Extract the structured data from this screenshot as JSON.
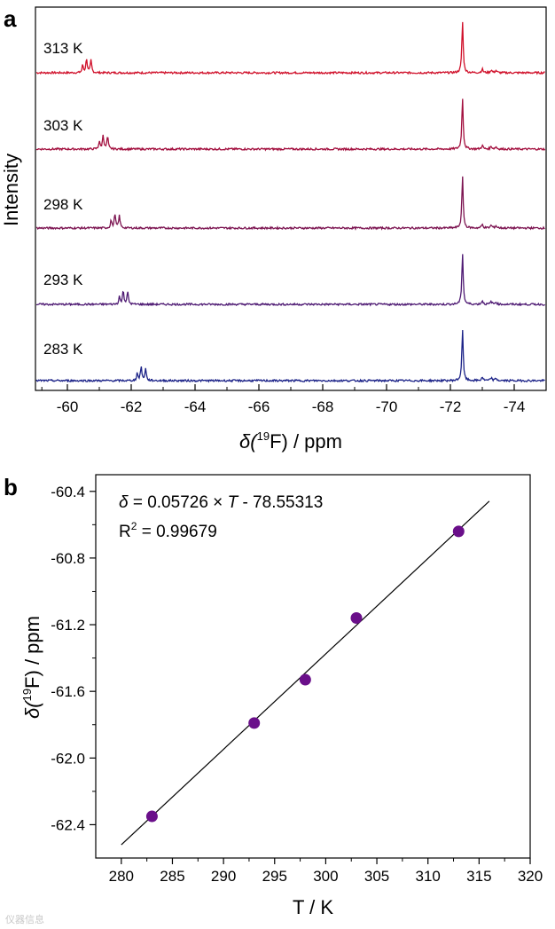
{
  "chart_data": [
    {
      "panel_label": "a",
      "type": "line",
      "xlabel_prefix": "δ(",
      "xlabel_sup": "19",
      "xlabel_suffix": "F) / ppm",
      "ylabel": "Intensity",
      "xlim": [
        -59,
        -75
      ],
      "x_ticks": [
        -60,
        -62,
        -64,
        -66,
        -68,
        -70,
        -72,
        -74
      ],
      "x_tick_labels": [
        "-60",
        "-62",
        "-64",
        "-66",
        "-68",
        "-70",
        "-72",
        "-74"
      ],
      "series": [
        {
          "name": "313 K",
          "color": "#d0102a",
          "small_peak_ppm": -60.64,
          "main_peak_ppm": -72.38
        },
        {
          "name": "303 K",
          "color": "#a3103f",
          "small_peak_ppm": -61.16,
          "main_peak_ppm": -72.38
        },
        {
          "name": "298 K",
          "color": "#7c1451",
          "small_peak_ppm": -61.53,
          "main_peak_ppm": -72.38
        },
        {
          "name": "293 K",
          "color": "#4e1a73",
          "small_peak_ppm": -61.79,
          "main_peak_ppm": -72.38
        },
        {
          "name": "283 K",
          "color": "#1c2388",
          "small_peak_ppm": -62.35,
          "main_peak_ppm": -72.38
        }
      ]
    },
    {
      "panel_label": "b",
      "type": "scatter",
      "xlabel": "T / K",
      "ylabel_prefix": "δ(",
      "ylabel_sup": "19",
      "ylabel_suffix": "F) / ppm",
      "xlim": [
        277.5,
        320
      ],
      "ylim": [
        -62.6,
        -60.3
      ],
      "x_ticks": [
        280,
        285,
        290,
        295,
        300,
        305,
        310,
        315,
        320
      ],
      "x_tick_labels": [
        "280",
        "285",
        "290",
        "295",
        "300",
        "305",
        "310",
        "315",
        "320"
      ],
      "y_ticks": [
        -60.4,
        -60.8,
        -61.2,
        -61.6,
        -62.0,
        -62.4
      ],
      "y_tick_labels": [
        "-60.4",
        "-60.8",
        "-61.2",
        "-61.6",
        "-62.0",
        "-62.4"
      ],
      "points": {
        "x": [
          283,
          293,
          298,
          303,
          313
        ],
        "y": [
          -62.35,
          -61.79,
          -61.53,
          -61.16,
          -60.64
        ]
      },
      "point_color": "#6a0f8a",
      "fit": {
        "slope": 0.05726,
        "intercept": -78.55313,
        "x_range": [
          280,
          316
        ]
      },
      "equation": {
        "delta": "δ",
        "middle": " = 0.05726 × ",
        "T": "T",
        "rest": " - 78.55313",
        "r2_prefix": "R",
        "r2_sup": "2",
        "r2_rest": " = 0.99679"
      }
    }
  ],
  "watermark": "仪器信息"
}
